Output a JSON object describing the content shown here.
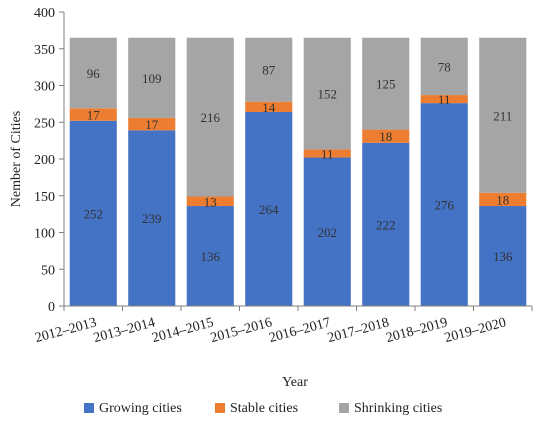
{
  "chart_data": {
    "type": "bar",
    "stacked": true,
    "categories": [
      "2012–2013",
      "2013–2014",
      "2014–2015",
      "2015–2016",
      "2016–2017",
      "2017–2018",
      "2018–2019",
      "2019–2020"
    ],
    "series": [
      {
        "name": "Growing cities",
        "color": "#4472C4",
        "values": [
          252,
          239,
          136,
          264,
          202,
          222,
          276,
          136
        ]
      },
      {
        "name": "Stable cities",
        "color": "#ED7D31",
        "values": [
          17,
          17,
          13,
          14,
          11,
          18,
          11,
          18
        ]
      },
      {
        "name": "Shrinking cities",
        "color": "#A5A5A5",
        "values": [
          96,
          109,
          216,
          87,
          152,
          125,
          78,
          211
        ]
      }
    ],
    "xlabel": "Year",
    "ylabel": "Nember of Cities",
    "ylim": [
      0,
      400
    ],
    "yticks": [
      0,
      50,
      100,
      150,
      200,
      250,
      300,
      350,
      400
    ],
    "grid": false,
    "legend_position": "bottom"
  }
}
